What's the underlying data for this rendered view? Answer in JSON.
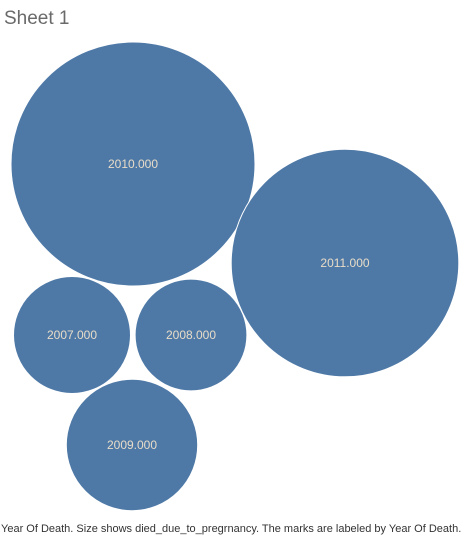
{
  "sheet": {
    "title": "Sheet 1",
    "caption": "Year Of Death.  Size shows died_due_to_pregrnancy.  The marks are labeled by Year Of Death."
  },
  "colors": {
    "bubble_fill": "#4e79a7",
    "bubble_label": "#e8dcc8",
    "title": "#6a6a6a",
    "caption": "#333333"
  },
  "chart_data": {
    "type": "bubble",
    "label_field": "Year Of Death",
    "size_field": "died_due_to_pregrnancy",
    "marks": [
      {
        "label": "2010.000",
        "relative_size": 1.0
      },
      {
        "label": "2011.000",
        "relative_size": 0.87
      },
      {
        "label": "2007.000",
        "relative_size": 0.23
      },
      {
        "label": "2008.000",
        "relative_size": 0.21
      },
      {
        "label": "2009.000",
        "relative_size": 0.29
      }
    ]
  }
}
